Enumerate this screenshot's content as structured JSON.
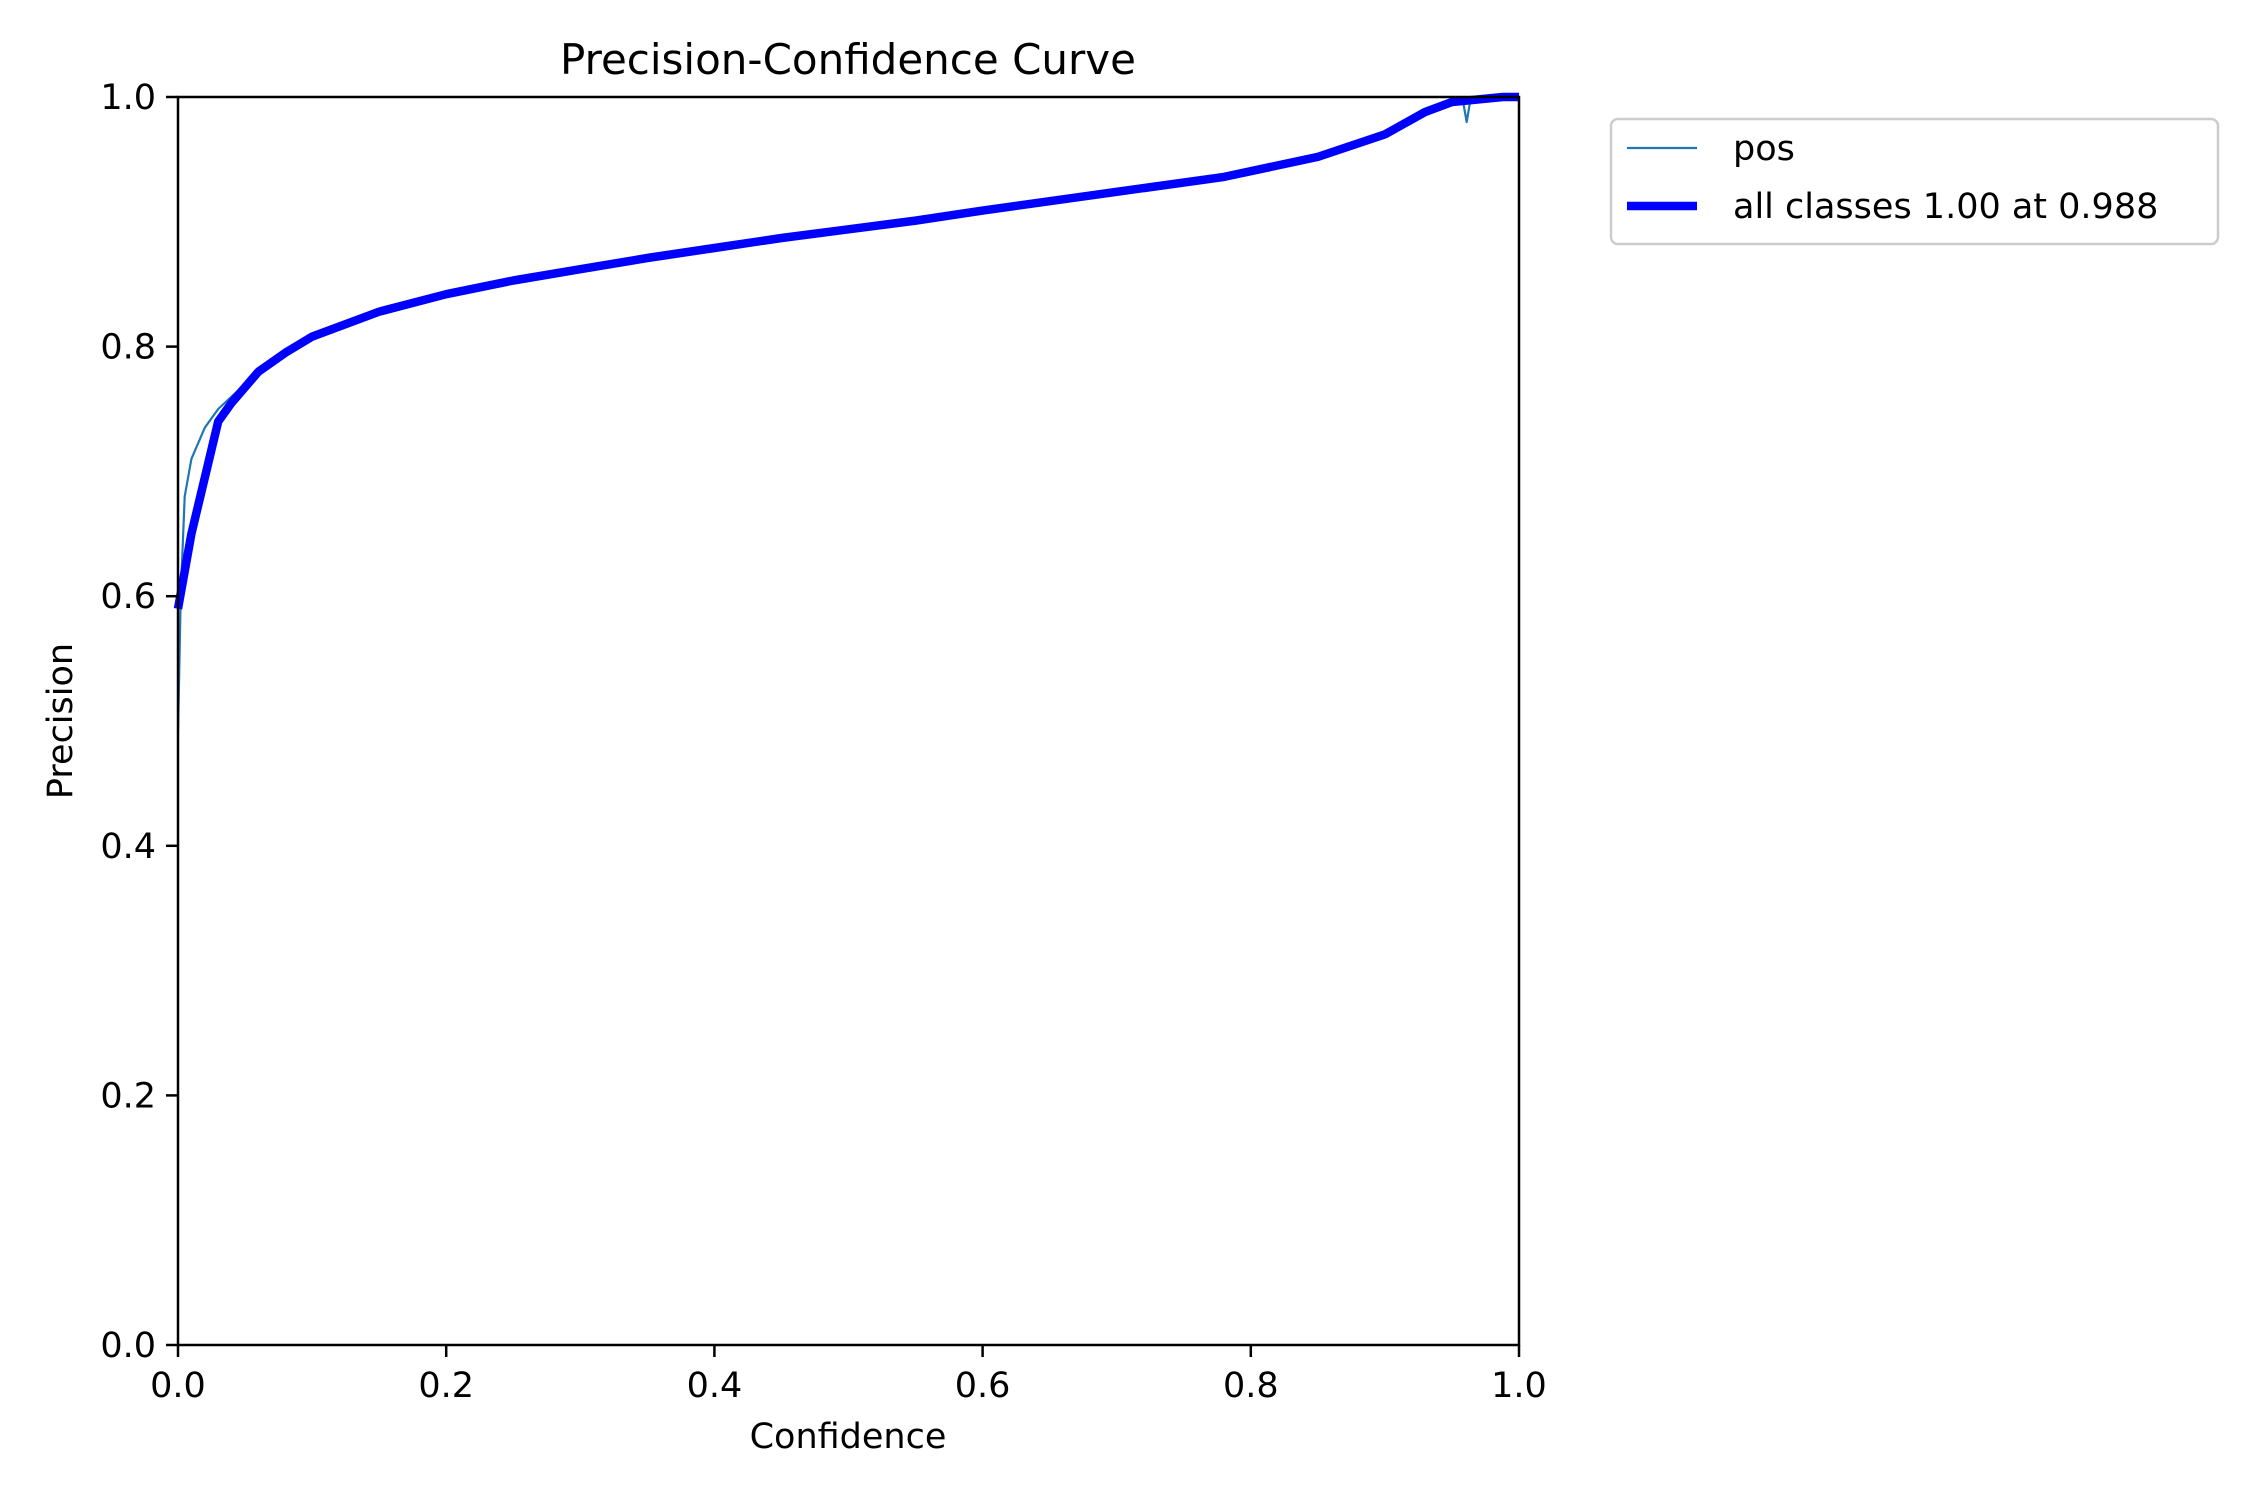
{
  "chart_data": {
    "type": "line",
    "title": "Precision-Confidence Curve",
    "xlabel": "Confidence",
    "ylabel": "Precision",
    "xlim": [
      0,
      1
    ],
    "ylim": [
      0,
      1
    ],
    "xticks": [
      "0.0",
      "0.2",
      "0.4",
      "0.6",
      "0.8",
      "1.0"
    ],
    "yticks": [
      "0.0",
      "0.2",
      "0.4",
      "0.6",
      "0.8",
      "1.0"
    ],
    "grid": false,
    "legend_placement": "outside-top-right",
    "series": [
      {
        "name": "pos",
        "color": "#1f77b4",
        "width": "thin",
        "x": [
          0,
          0.002,
          0.005,
          0.01,
          0.02,
          0.03,
          0.04,
          0.06,
          0.08,
          0.1,
          0.15,
          0.2,
          0.25,
          0.3,
          0.35,
          0.4,
          0.45,
          0.5,
          0.55,
          0.6,
          0.62,
          0.7,
          0.78,
          0.85,
          0.9,
          0.93,
          0.95,
          0.958,
          0.961,
          0.964,
          0.988,
          1.0
        ],
        "y": [
          0.49,
          0.6,
          0.68,
          0.71,
          0.735,
          0.75,
          0.76,
          0.78,
          0.795,
          0.808,
          0.828,
          0.842,
          0.853,
          0.862,
          0.871,
          0.879,
          0.887,
          0.894,
          0.901,
          0.909,
          0.912,
          0.924,
          0.936,
          0.952,
          0.97,
          0.988,
          0.996,
          0.998,
          0.98,
          0.999,
          1.0,
          1.0
        ]
      },
      {
        "name": "all classes 1.00 at 0.988",
        "color": "#0000ff",
        "width": "thick",
        "x": [
          0,
          0.01,
          0.03,
          0.04,
          0.06,
          0.08,
          0.1,
          0.15,
          0.2,
          0.25,
          0.3,
          0.35,
          0.4,
          0.45,
          0.5,
          0.55,
          0.6,
          0.62,
          0.7,
          0.78,
          0.85,
          0.9,
          0.93,
          0.95,
          0.988,
          1.0
        ],
        "y": [
          0.59,
          0.65,
          0.74,
          0.755,
          0.78,
          0.795,
          0.808,
          0.828,
          0.842,
          0.853,
          0.862,
          0.871,
          0.879,
          0.887,
          0.894,
          0.901,
          0.909,
          0.912,
          0.924,
          0.936,
          0.952,
          0.97,
          0.988,
          0.996,
          1.0,
          1.0
        ]
      }
    ]
  }
}
